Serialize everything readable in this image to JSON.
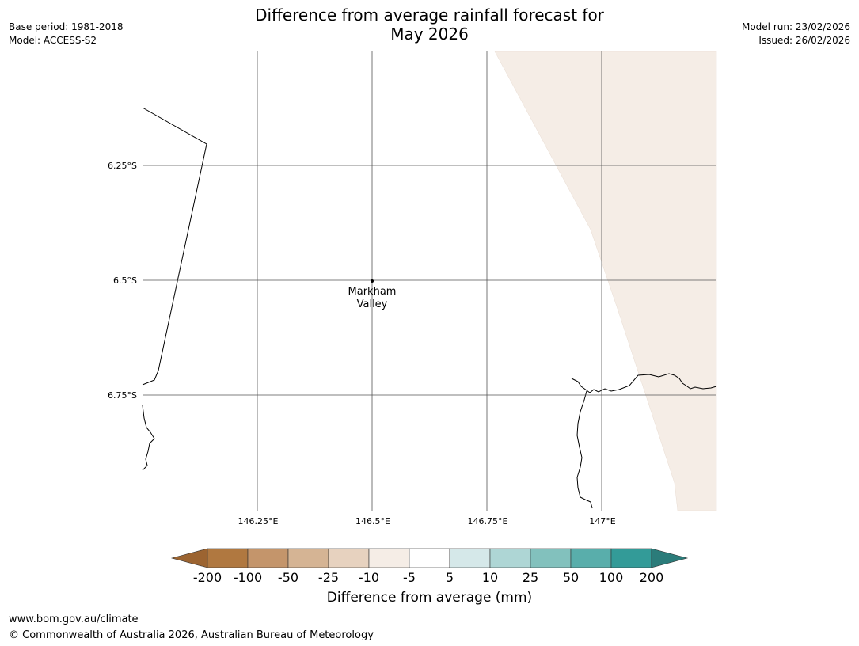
{
  "header": {
    "title_line1": "Difference from average rainfall forecast for",
    "title_line2": "May 2026",
    "base_period": "Base period: 1981-2018",
    "model": "Model: ACCESS-S2",
    "model_run": "Model run: 23/02/2026",
    "issued": "Issued: 26/02/2026"
  },
  "map": {
    "lat_labels": [
      "6.25°S",
      "6.5°S",
      "6.75°S"
    ],
    "lon_labels": [
      "146.25°E",
      "146.5°E",
      "146.75°E",
      "147°E"
    ],
    "place": {
      "name_line1": "Markham",
      "name_line2": "Valley"
    },
    "forecast_band_category": "-10 to -5",
    "colors": {
      "land_fill": "#ffffff",
      "drier_band": "#f5ede6",
      "coastline": "#000000",
      "gridline": "#555555"
    }
  },
  "colorbar": {
    "title": "Difference from average (mm)",
    "tick_labels": [
      "-200",
      "-100",
      "-50",
      "-25",
      "-10",
      "-5",
      "5",
      "10",
      "25",
      "50",
      "100",
      "200"
    ],
    "colors": [
      "#9c6431",
      "#b07840",
      "#c4956b",
      "#d5b494",
      "#e7d2bf",
      "#f5ede6",
      "#ffffff",
      "#d5e8e9",
      "#aed6d5",
      "#82c1bd",
      "#59aeab",
      "#339b98",
      "#2b7c7a"
    ]
  },
  "footer": {
    "url": "www.bom.gov.au/climate",
    "copyright": "© Commonwealth of Australia 2026, Australian Bureau of Meteorology"
  }
}
